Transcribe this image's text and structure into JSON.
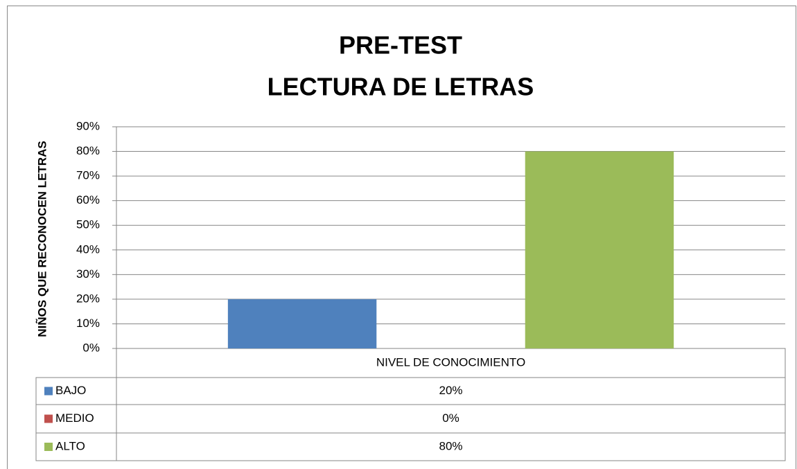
{
  "chart_data": {
    "type": "bar",
    "title": [
      "PRE-TEST",
      "LECTURA DE LETRAS"
    ],
    "y_label": "NIÑOS QUE RECONOCEN LETRAS",
    "categories": [
      "NIVEL DE CONOCIMIENTO"
    ],
    "series": [
      {
        "name": "BAJO",
        "color": "#4f81bd",
        "values": [
          20
        ],
        "value_labels": [
          "20%"
        ]
      },
      {
        "name": "MEDIO",
        "color": "#c0504d",
        "values": [
          0
        ],
        "value_labels": [
          "0%"
        ]
      },
      {
        "name": "ALTO",
        "color": "#9bbb59",
        "values": [
          80
        ],
        "value_labels": [
          "80%"
        ]
      }
    ],
    "ylim": [
      0,
      90
    ],
    "yticks": [
      {
        "value": 0,
        "label": "0%"
      },
      {
        "value": 10,
        "label": "10%"
      },
      {
        "value": 20,
        "label": "20%"
      },
      {
        "value": 30,
        "label": "30%"
      },
      {
        "value": 40,
        "label": "40%"
      },
      {
        "value": 50,
        "label": "50%"
      },
      {
        "value": 60,
        "label": "60%"
      },
      {
        "value": 70,
        "label": "70%"
      },
      {
        "value": 80,
        "label": "80%"
      },
      {
        "value": 90,
        "label": "90%"
      }
    ],
    "grid": true
  }
}
